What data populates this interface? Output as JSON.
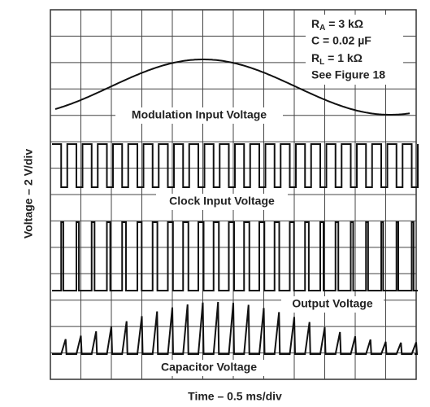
{
  "legend": {
    "ra": {
      "symbol": "R",
      "subscript": "A",
      "rest": " = 3 kΩ"
    },
    "c": "C = 0.02 µF",
    "rl": {
      "symbol": "R",
      "subscript": "L",
      "rest": " = 1 kΩ"
    },
    "figure": "See Figure 18"
  },
  "traces": {
    "modulation": "Modulation Input Voltage",
    "clock": "Clock Input Voltage",
    "output": "Output Voltage",
    "capacitor": "Capacitor Voltage"
  },
  "axes": {
    "y_label": "Voltage – 2 V/div",
    "x_label": "Time – 0.5 ms/div"
  }
}
